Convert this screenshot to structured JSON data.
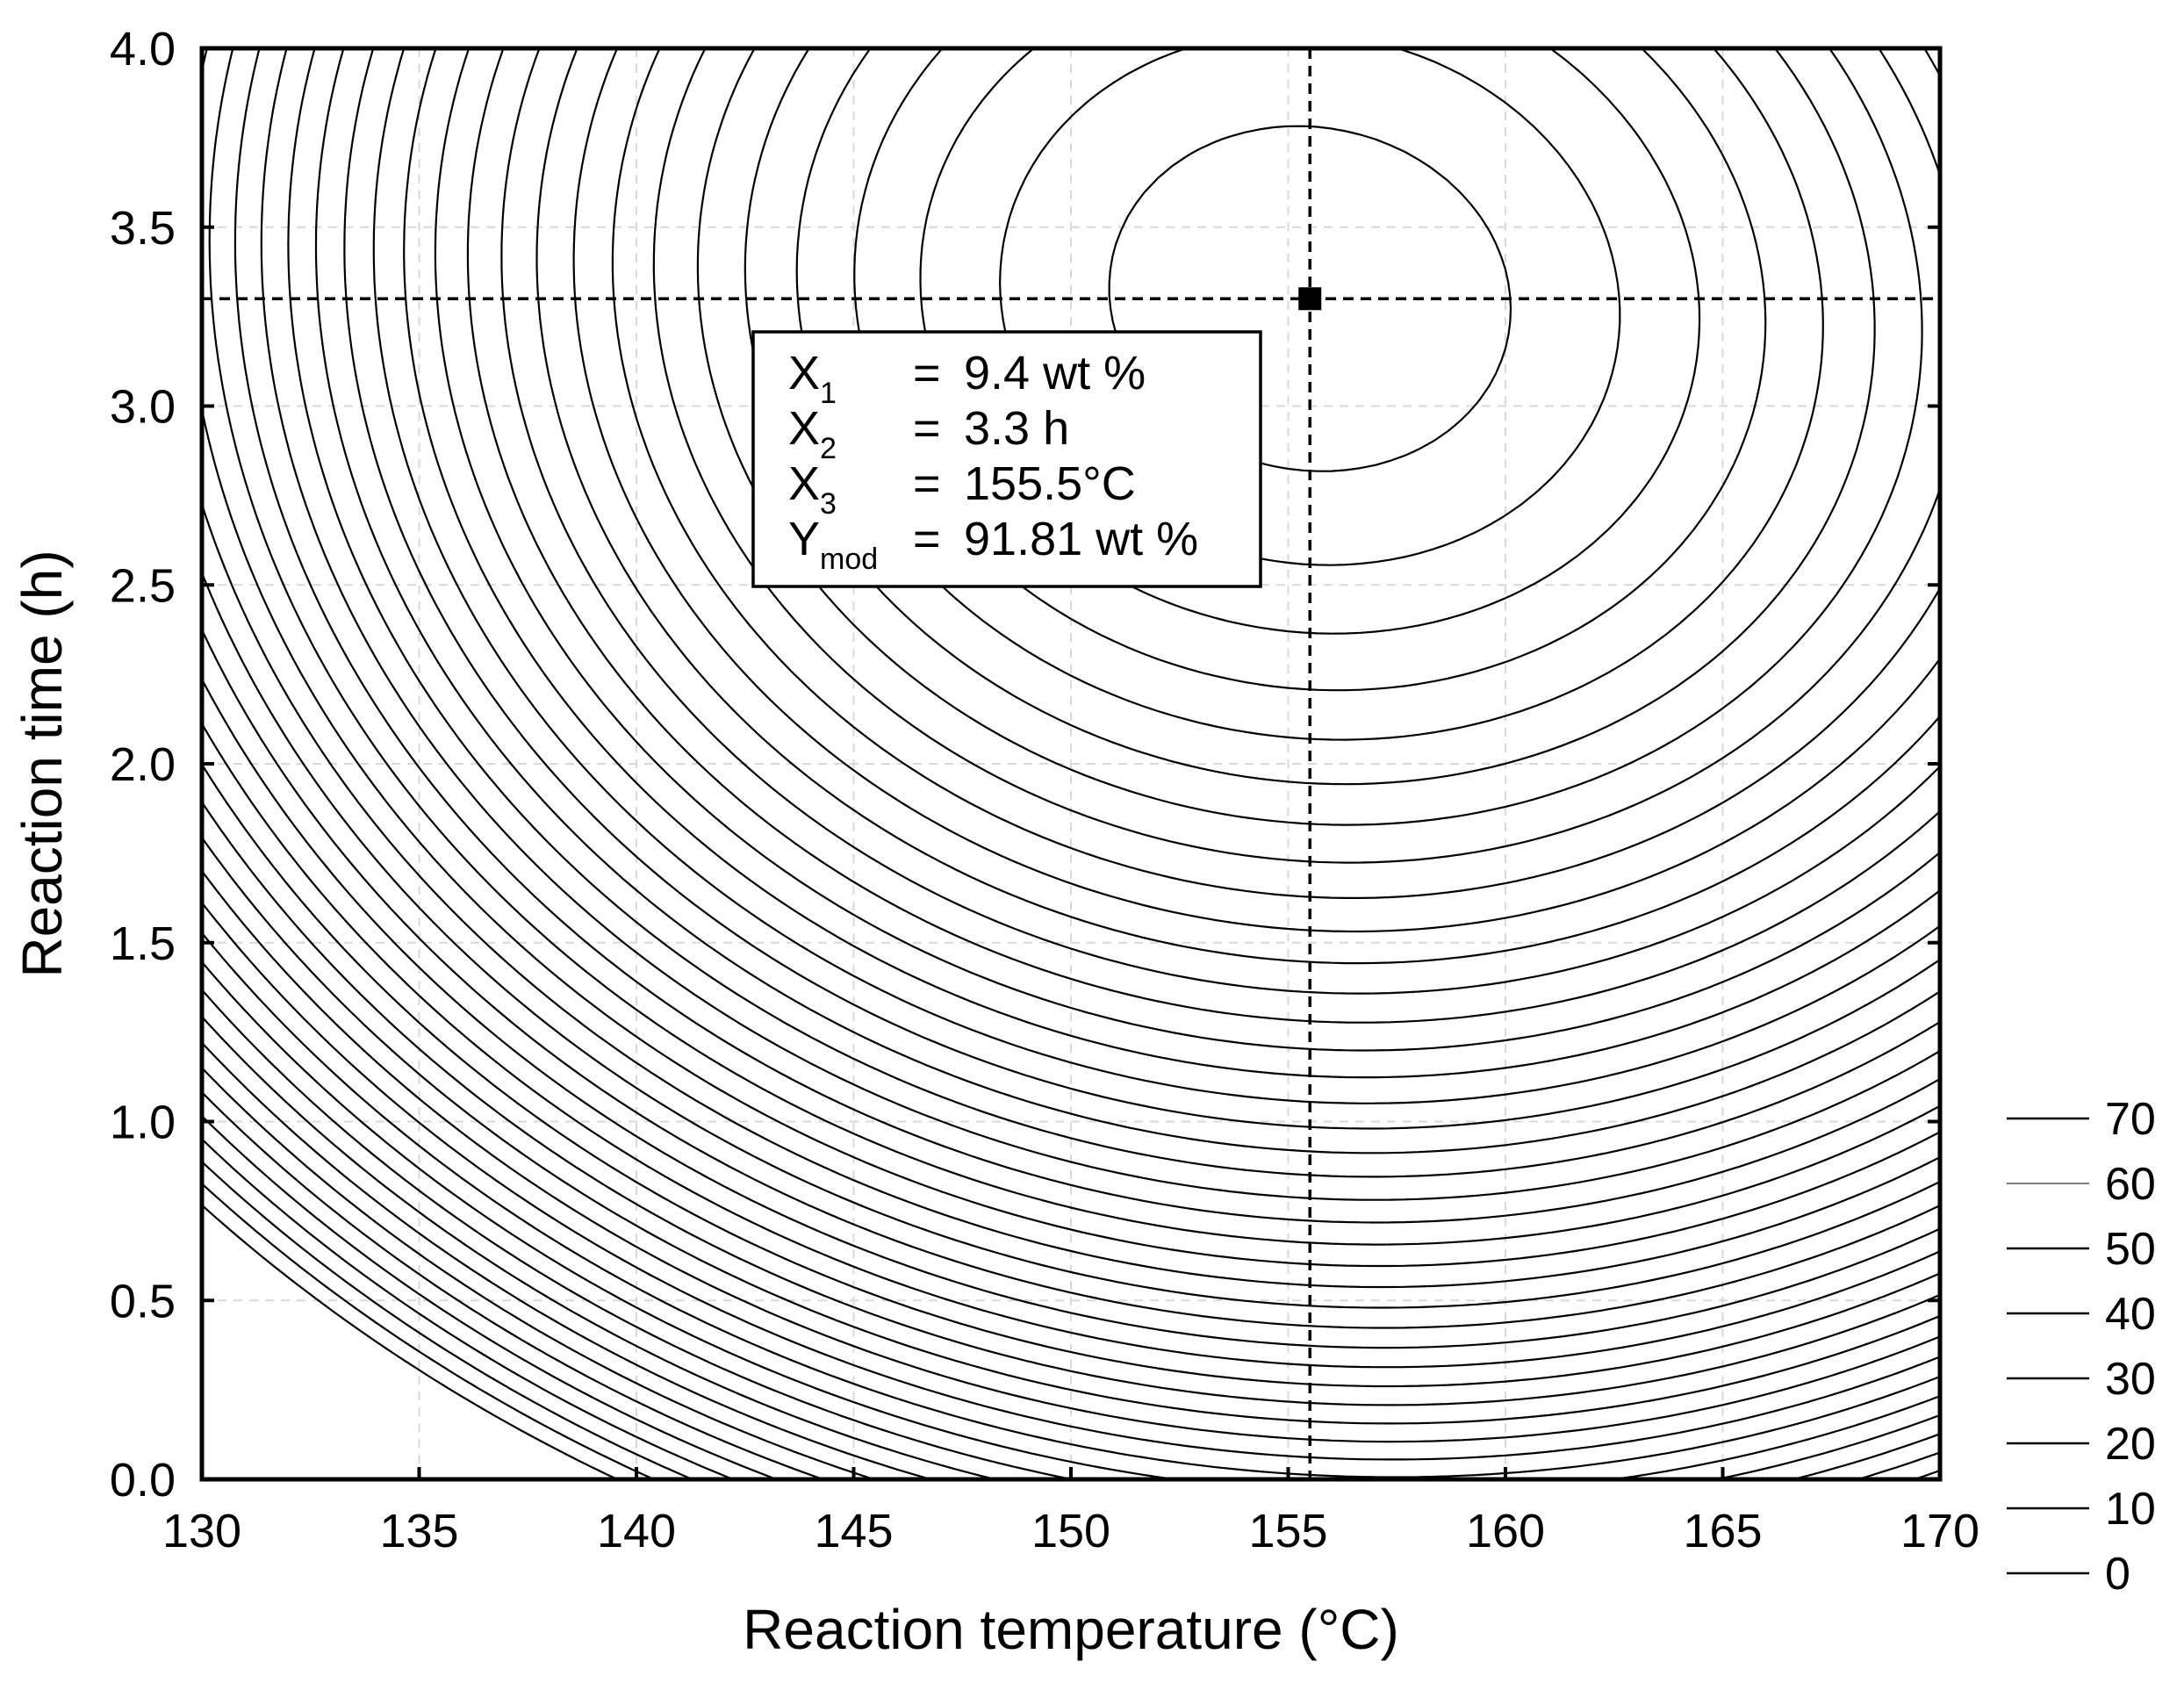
{
  "chart_data": {
    "type": "contour",
    "xlabel": "Reaction temperature (°C)",
    "ylabel": "Reaction time (h)",
    "xlim": [
      130,
      170
    ],
    "ylim": [
      0.0,
      4.0
    ],
    "x_ticks": [
      "130",
      "135",
      "140",
      "145",
      "150",
      "155",
      "160",
      "165",
      "170"
    ],
    "y_ticks": [
      "0.0",
      "0.5",
      "1.0",
      "1.5",
      "2.0",
      "2.5",
      "3.0",
      "3.5",
      "4.0"
    ],
    "grid": true,
    "contour_levels_step": 2.5,
    "contour_levels_min": -20,
    "contour_levels_max": 90,
    "optimum": {
      "temperature_c": 155.5,
      "time_h": 3.3,
      "response": 91.81
    },
    "legend": {
      "placement": "right",
      "entries": [
        "70",
        "60",
        "50",
        "40",
        "30",
        "20",
        "10",
        "0"
      ]
    },
    "info_box": {
      "rows": [
        {
          "var": "X",
          "sub": "1",
          "eq": "=",
          "value": "9.4 wt %"
        },
        {
          "var": "X",
          "sub": "2",
          "eq": "=",
          "value": "3.3 h"
        },
        {
          "var": "X",
          "sub": "3",
          "eq": "=",
          "value": "155.5°C"
        },
        {
          "var": "Y",
          "sub": "mod",
          "eq": "=",
          "value": "91.81 wt %"
        }
      ]
    },
    "colors": {
      "lines": "#000000",
      "grid": "#d9d9d9",
      "background": "#ffffff"
    }
  }
}
